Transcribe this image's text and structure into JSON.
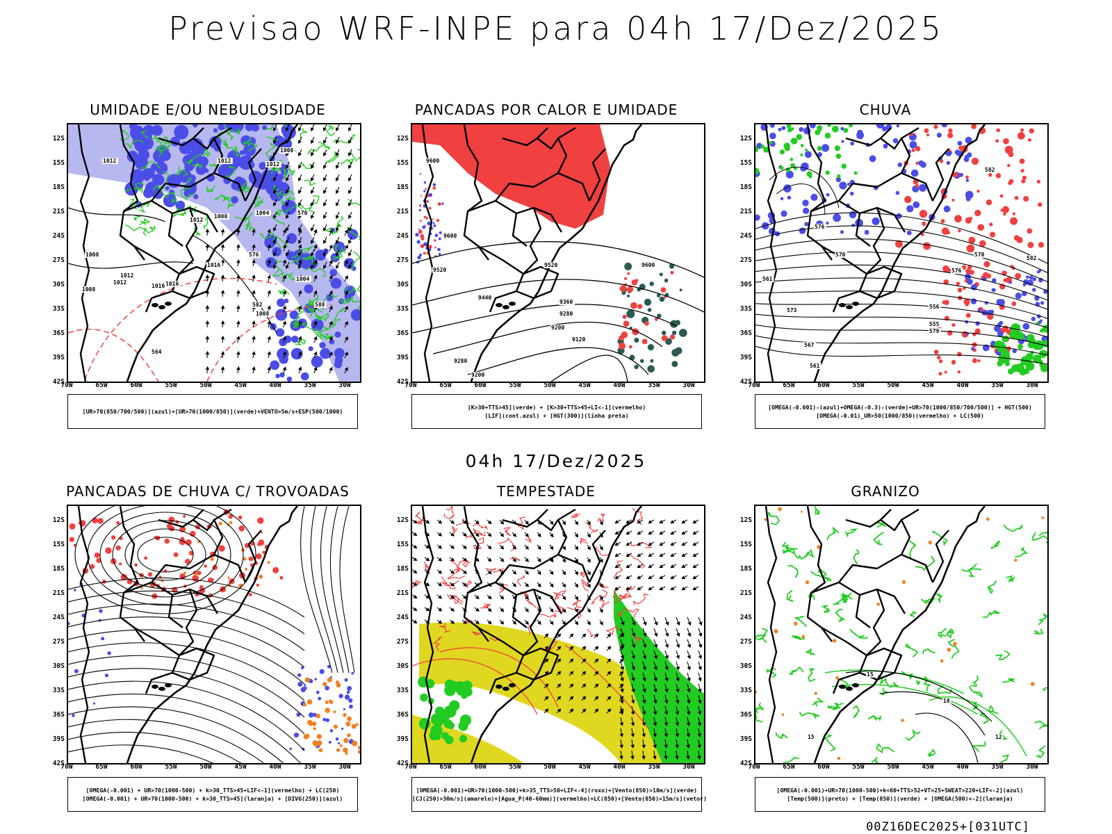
{
  "header": {
    "title": "Previsao WRF-INPE  para 04h 17/Dez/2025"
  },
  "mid_title": "04h 17/Dez/2025",
  "footer": "00Z16DEC2025+[031UTC]",
  "axes": {
    "lat_labels": [
      "12S",
      "15S",
      "18S",
      "21S",
      "24S",
      "27S",
      "30S",
      "33S",
      "36S",
      "39S",
      "42S"
    ],
    "lon_labels": [
      "70W",
      "65W",
      "60W",
      "55W",
      "50W",
      "45W",
      "40W",
      "35W",
      "30W"
    ]
  },
  "panels": [
    {
      "title": "UMIDADE E/OU NEBULOSIDADE",
      "legend": [
        "[UR>70(850/700/500)](azul)+[UR>70(1000/850)](verde)+VENTO>5m/s+ESP(500/1000)"
      ]
    },
    {
      "title": "PANCADAS POR CALOR E UMIDADE",
      "legend": [
        "[K>30+TTS>45](verde) + [K>30+TTS>45+LI<-1](vermelho)",
        "[LIF](cont.azul) + [HGT(300)](linha preta)"
      ]
    },
    {
      "title": "CHUVA",
      "legend": [
        "[OMEGA(-0.001)-(azul)+OMEGA(-0.3)-(verde)+UR>70(1000/850/700/500)] + HGT(500)",
        "[OMEGA(-0.01)_UR>50(1000/850)(vermelho) + LC(500)"
      ]
    },
    {
      "title": "PANCADAS DE CHUVA C/ TROVOADAS",
      "legend": [
        "[OMEGA(-0.001) + UR>70(1000-500) + k>30_TTS>45+LIF<-1](vermelho) + LC(250)",
        "[OMEGA(-0.001) + UR>70(1000-500) + k>30_TTS>45](laranja) + [DIVG(250)](azul)"
      ]
    },
    {
      "title": "TEMPESTADE",
      "legend": [
        "[OMEGA(-0.001)+UR>70(1000-500)+k>35_TTS>50+LIF<-4](roxo)+[Vento(850)>10m/s](verde)",
        "[CJ(250)>30m/s](amarelo)+[Agua_P(40-60mm)](vermelho)+LC(850)+[Vento(850)>15m/s](vetor)"
      ]
    },
    {
      "title": "GRANIZO",
      "legend": [
        "[OMEGA(-0.001)+UR>70(1000-500)+k<60+TTS>52+VT>25+SWEAT>220+LIF<-2](azul)",
        "[Temp(500)](preto) + [Temp(850)](verde) + [OMEGA(500)<-2](laranja)"
      ]
    }
  ],
  "contour_labels": {
    "p1": [
      "1012",
      "1012",
      "1012",
      "1008",
      "1004",
      "1008",
      "1016",
      "1012",
      "1008",
      "1004",
      "1012",
      "1016",
      "1008",
      "1012",
      "570",
      "576",
      "564",
      "582",
      "588",
      "1016",
      "1008"
    ],
    "p2": [
      "9600",
      "9600",
      "9520",
      "9440",
      "9360",
      "9280",
      "9200",
      "9120",
      "9520",
      "9600",
      "9280",
      "9200"
    ],
    "p3": [
      "582",
      "576",
      "576",
      "570",
      "573",
      "567",
      "561",
      "556",
      "555",
      "579",
      "570",
      "561",
      "582"
    ],
    "p6": [
      "15",
      "12",
      "18",
      "15"
    ]
  },
  "colors": {
    "blue": "#4a4de6",
    "lightblue": "#b8b8f0",
    "green": "#22cc22",
    "red": "#f04040",
    "darkgreen": "#2a5a52",
    "yellow": "#e0d820",
    "orange": "#f08020",
    "bluedots": "#2233dd"
  }
}
